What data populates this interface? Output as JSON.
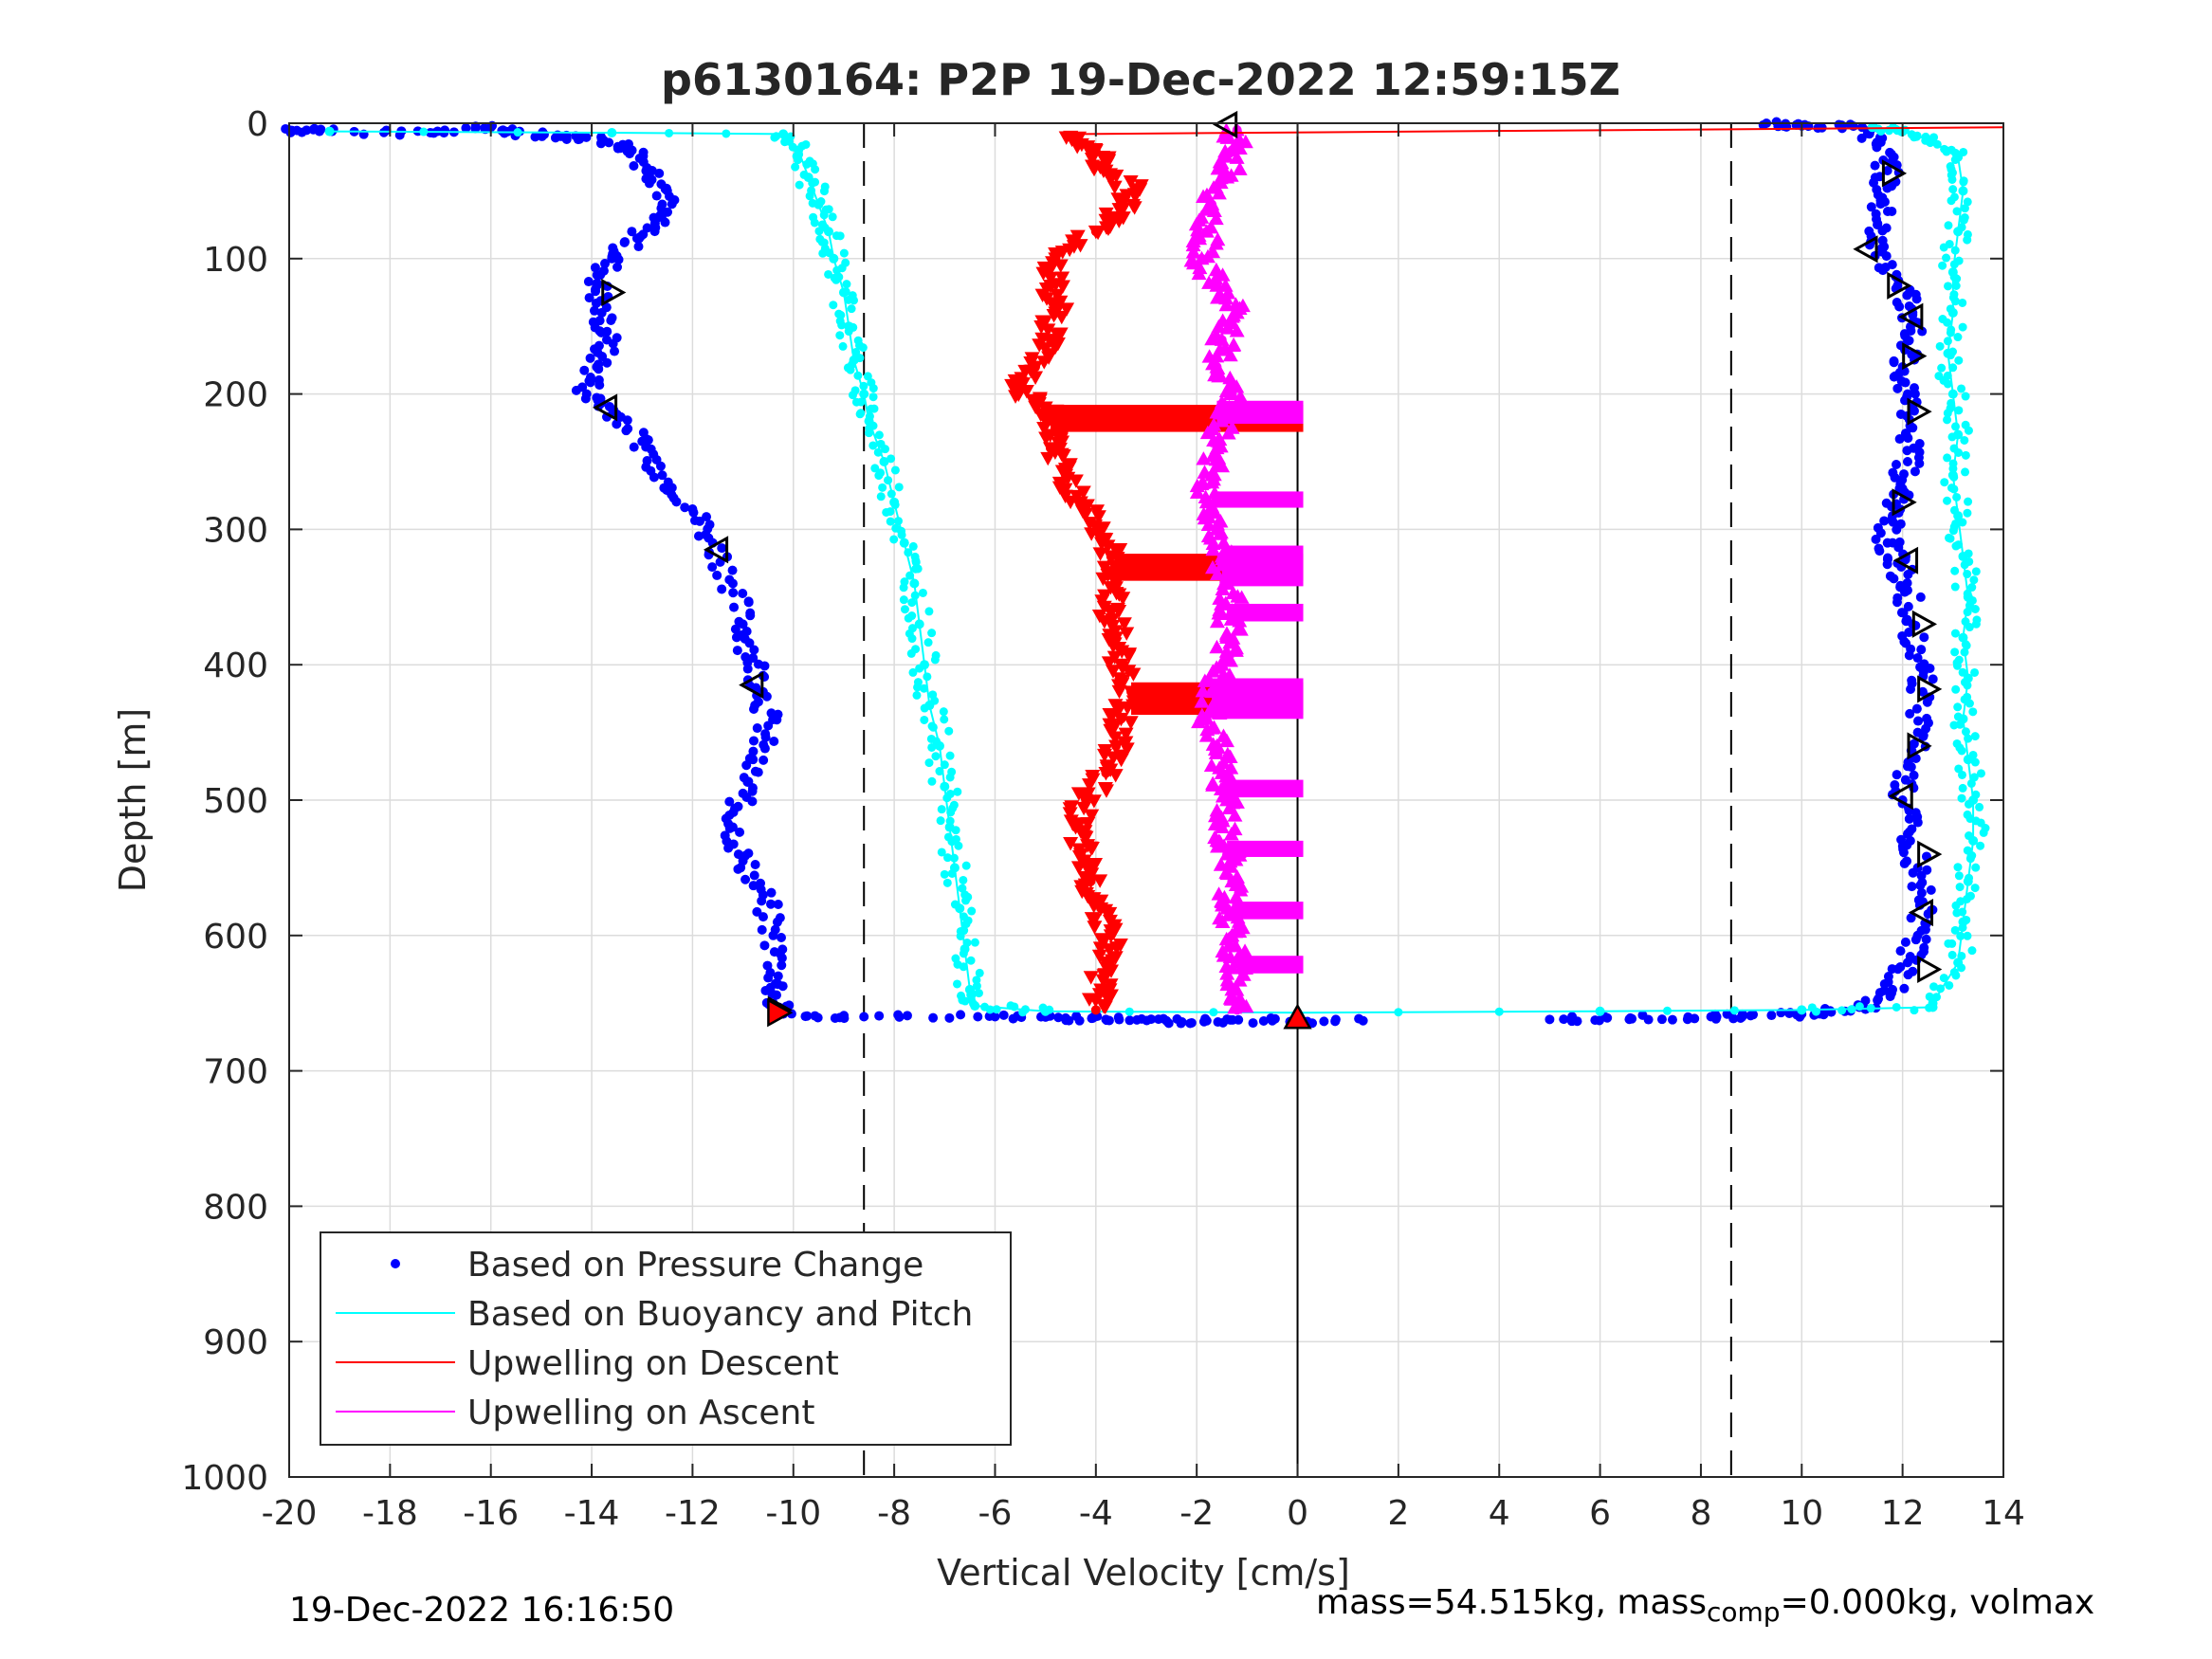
{
  "chart_data": {
    "type": "scatter",
    "title": "p6130164: P2P 19-Dec-2022 12:59:15Z",
    "xlabel": "Vertical Velocity [cm/s]",
    "ylabel": "Depth [m]",
    "xlim": [
      -20,
      14
    ],
    "ylim": [
      0,
      1000
    ],
    "y_reversed": true,
    "grid": true,
    "x_ticks": [
      -20,
      -18,
      -16,
      -14,
      -12,
      -10,
      -8,
      -6,
      -4,
      -2,
      0,
      2,
      4,
      6,
      8,
      10,
      12,
      14
    ],
    "y_ticks": [
      0,
      100,
      200,
      300,
      400,
      500,
      600,
      700,
      800,
      900,
      1000
    ],
    "reference_lines": {
      "dashed_x": [
        -8.6,
        8.6
      ],
      "solid_x": [
        0
      ]
    },
    "legend_position": "bottom-left",
    "legend": [
      {
        "label": "Based on Pressure Change",
        "color": "#0000ff",
        "style": "dot"
      },
      {
        "label": "Based on Buoyancy and Pitch",
        "color": "#00ffff",
        "style": "line"
      },
      {
        "label": "Upwelling on Descent",
        "color": "#ff0000",
        "style": "line"
      },
      {
        "label": "Upwelling on Ascent",
        "color": "#ff00ff",
        "style": "line"
      }
    ],
    "series": [
      {
        "name": "Based on Pressure Change",
        "role": "descent",
        "color": "#0000ff",
        "marker": "dot",
        "points": [
          [
            -20,
            5
          ],
          [
            -19.4,
            6
          ],
          [
            -17.2,
            7
          ],
          [
            -16,
            3
          ],
          [
            -15.5,
            8
          ],
          [
            -14.5,
            9
          ],
          [
            -13.8,
            12
          ],
          [
            -13.2,
            20
          ],
          [
            -12.8,
            35
          ],
          [
            -12.5,
            50
          ],
          [
            -12.7,
            70
          ],
          [
            -13.1,
            85
          ],
          [
            -13.6,
            100
          ],
          [
            -13.9,
            120
          ],
          [
            -13.8,
            140
          ],
          [
            -13.7,
            160
          ],
          [
            -13.9,
            180
          ],
          [
            -14.1,
            200
          ],
          [
            -13.5,
            215
          ],
          [
            -13.0,
            235
          ],
          [
            -12.6,
            260
          ],
          [
            -12.0,
            285
          ],
          [
            -11.6,
            310
          ],
          [
            -11.2,
            340
          ],
          [
            -11.0,
            370
          ],
          [
            -10.8,
            395
          ],
          [
            -10.6,
            420
          ],
          [
            -10.5,
            445
          ],
          [
            -10.8,
            470
          ],
          [
            -11.0,
            495
          ],
          [
            -11.2,
            520
          ],
          [
            -11.0,
            545
          ],
          [
            -10.6,
            570
          ],
          [
            -10.4,
            600
          ],
          [
            -10.3,
            630
          ],
          [
            -10.4,
            650
          ],
          [
            -10.2,
            658
          ],
          [
            -8.6,
            660
          ],
          [
            -6.0,
            660
          ],
          [
            -4.6,
            661
          ],
          [
            -3.8,
            662
          ],
          [
            -2.6,
            663
          ],
          [
            -1.8,
            663
          ],
          [
            -0.5,
            663
          ],
          [
            1.3,
            663
          ]
        ]
      },
      {
        "name": "Based on Pressure Change",
        "role": "ascent",
        "color": "#0000ff",
        "marker": "dot",
        "points": [
          [
            5.0,
            662
          ],
          [
            6.6,
            661
          ],
          [
            8.2,
            660
          ],
          [
            9.4,
            659
          ],
          [
            10.3,
            658
          ],
          [
            11.2,
            653
          ],
          [
            11.8,
            640
          ],
          [
            12.1,
            620
          ],
          [
            12.3,
            600
          ],
          [
            12.4,
            575
          ],
          [
            12.3,
            550
          ],
          [
            12.1,
            525
          ],
          [
            12.0,
            500
          ],
          [
            12.1,
            475
          ],
          [
            12.3,
            450
          ],
          [
            12.4,
            420
          ],
          [
            12.3,
            395
          ],
          [
            12.2,
            370
          ],
          [
            12.1,
            345
          ],
          [
            11.9,
            325
          ],
          [
            11.7,
            310
          ],
          [
            11.8,
            290
          ],
          [
            12.0,
            270
          ],
          [
            12.1,
            250
          ],
          [
            12.2,
            225
          ],
          [
            12.1,
            200
          ],
          [
            12.0,
            180
          ],
          [
            12.1,
            160
          ],
          [
            12.2,
            140
          ],
          [
            11.9,
            120
          ],
          [
            11.6,
            95
          ],
          [
            11.5,
            75
          ],
          [
            11.6,
            55
          ],
          [
            11.7,
            35
          ],
          [
            11.5,
            15
          ],
          [
            11.2,
            3
          ],
          [
            10.0,
            2
          ],
          [
            9.3,
            0
          ]
        ]
      },
      {
        "name": "Based on Buoyancy and Pitch",
        "role": "descent",
        "color": "#00ffff",
        "marker": "line",
        "points": [
          [
            -19.2,
            6
          ],
          [
            -13.6,
            7
          ],
          [
            -10.2,
            8
          ],
          [
            -9.9,
            20
          ],
          [
            -9.7,
            40
          ],
          [
            -9.5,
            60
          ],
          [
            -9.3,
            80
          ],
          [
            -9.2,
            100
          ],
          [
            -9.0,
            125
          ],
          [
            -8.9,
            150
          ],
          [
            -8.8,
            175
          ],
          [
            -8.6,
            200
          ],
          [
            -8.5,
            220
          ],
          [
            -8.2,
            250
          ],
          [
            -8.0,
            280
          ],
          [
            -7.8,
            310
          ],
          [
            -7.6,
            340
          ],
          [
            -7.5,
            370
          ],
          [
            -7.4,
            400
          ],
          [
            -7.3,
            430
          ],
          [
            -7.1,
            460
          ],
          [
            -7.0,
            490
          ],
          [
            -6.9,
            520
          ],
          [
            -6.8,
            550
          ],
          [
            -6.7,
            580
          ],
          [
            -6.6,
            610
          ],
          [
            -6.5,
            640
          ],
          [
            -6.4,
            652
          ],
          [
            -5.0,
            656
          ],
          [
            0,
            657
          ],
          [
            6.0,
            656
          ],
          [
            10.0,
            655
          ],
          [
            12.6,
            653
          ]
        ]
      },
      {
        "name": "Based on Buoyancy and Pitch",
        "role": "ascent",
        "color": "#00ffff",
        "marker": "line",
        "points": [
          [
            12.6,
            650
          ],
          [
            13.1,
            620
          ],
          [
            13.2,
            590
          ],
          [
            13.3,
            560
          ],
          [
            13.4,
            530
          ],
          [
            13.4,
            500
          ],
          [
            13.3,
            470
          ],
          [
            13.2,
            440
          ],
          [
            13.3,
            410
          ],
          [
            13.2,
            380
          ],
          [
            13.3,
            350
          ],
          [
            13.2,
            320
          ],
          [
            13.1,
            290
          ],
          [
            13.0,
            260
          ],
          [
            13.1,
            230
          ],
          [
            13.0,
            200
          ],
          [
            12.9,
            170
          ],
          [
            13.0,
            140
          ],
          [
            13.0,
            110
          ],
          [
            13.1,
            80
          ],
          [
            13.2,
            50
          ],
          [
            13.1,
            25
          ],
          [
            12.5,
            12
          ],
          [
            12.0,
            6
          ],
          [
            11.4,
            3
          ]
        ]
      },
      {
        "name": "Upwelling on Descent",
        "color": "#ff0000",
        "marker": "triangle-down",
        "points": [
          [
            -4.5,
            10
          ],
          [
            -4.0,
            20
          ],
          [
            -3.8,
            35
          ],
          [
            -3.2,
            50
          ],
          [
            -3.5,
            65
          ],
          [
            -4.0,
            80
          ],
          [
            -4.8,
            100
          ],
          [
            -4.9,
            120
          ],
          [
            -4.8,
            140
          ],
          [
            -4.9,
            160
          ],
          [
            -5.2,
            180
          ],
          [
            -5.6,
            195
          ],
          [
            -5.0,
            210
          ],
          [
            -4.8,
            225
          ],
          [
            -4.9,
            240
          ],
          [
            -4.6,
            260
          ],
          [
            -4.3,
            280
          ],
          [
            -3.9,
            300
          ],
          [
            -3.7,
            320
          ],
          [
            -3.6,
            340
          ],
          [
            -3.7,
            360
          ],
          [
            -3.6,
            380
          ],
          [
            -3.5,
            400
          ],
          [
            -3.3,
            420
          ],
          [
            -3.5,
            440
          ],
          [
            -3.6,
            460
          ],
          [
            -3.8,
            480
          ],
          [
            -4.2,
            500
          ],
          [
            -4.4,
            520
          ],
          [
            -4.3,
            540
          ],
          [
            -4.1,
            560
          ],
          [
            -3.9,
            580
          ],
          [
            -3.7,
            600
          ],
          [
            -3.8,
            620
          ],
          [
            -3.9,
            640
          ],
          [
            -4.0,
            655
          ]
        ]
      },
      {
        "name": "Upwelling on Ascent",
        "color": "#ff00ff",
        "marker": "triangle-up",
        "points": [
          [
            -1.2,
            5
          ],
          [
            -1.3,
            20
          ],
          [
            -1.4,
            40
          ],
          [
            -1.7,
            60
          ],
          [
            -1.8,
            80
          ],
          [
            -1.9,
            100
          ],
          [
            -1.6,
            120
          ],
          [
            -1.2,
            140
          ],
          [
            -1.5,
            160
          ],
          [
            -1.6,
            180
          ],
          [
            -1.3,
            200
          ],
          [
            -1.5,
            220
          ],
          [
            -1.6,
            240
          ],
          [
            -1.7,
            260
          ],
          [
            -1.8,
            280
          ],
          [
            -1.6,
            300
          ],
          [
            -1.5,
            320
          ],
          [
            -1.4,
            340
          ],
          [
            -1.3,
            360
          ],
          [
            -1.4,
            380
          ],
          [
            -1.5,
            400
          ],
          [
            -1.7,
            420
          ],
          [
            -1.8,
            440
          ],
          [
            -1.6,
            460
          ],
          [
            -1.5,
            480
          ],
          [
            -1.4,
            500
          ],
          [
            -1.5,
            520
          ],
          [
            -1.4,
            540
          ],
          [
            -1.3,
            560
          ],
          [
            -1.4,
            580
          ],
          [
            -1.3,
            600
          ],
          [
            -1.2,
            620
          ],
          [
            -1.3,
            640
          ],
          [
            -1.2,
            655
          ]
        ]
      }
    ],
    "band_rows": [
      {
        "color": "#ff0000",
        "x_from": -4.9,
        "x_to": 0,
        "depth_from": 208,
        "depth_to": 228
      },
      {
        "color": "#ff0000",
        "x_from": -3.6,
        "x_to": 0,
        "depth_from": 318,
        "depth_to": 338
      },
      {
        "color": "#ff0000",
        "x_from": -3.3,
        "x_to": 0,
        "depth_from": 413,
        "depth_to": 437
      },
      {
        "color": "#ff00ff",
        "x_from": -1.6,
        "x_to": 0,
        "depth_from": 205,
        "depth_to": 222
      },
      {
        "color": "#ff00ff",
        "x_from": -1.7,
        "x_to": 0,
        "depth_from": 272,
        "depth_to": 284
      },
      {
        "color": "#ff00ff",
        "x_from": -1.5,
        "x_to": 0,
        "depth_from": 312,
        "depth_to": 342
      },
      {
        "color": "#ff00ff",
        "x_from": -1.4,
        "x_to": 0,
        "depth_from": 355,
        "depth_to": 368
      },
      {
        "color": "#ff00ff",
        "x_from": -1.7,
        "x_to": 0,
        "depth_from": 410,
        "depth_to": 440
      },
      {
        "color": "#ff00ff",
        "x_from": -1.5,
        "x_to": 0,
        "depth_from": 485,
        "depth_to": 498
      },
      {
        "color": "#ff00ff",
        "x_from": -1.4,
        "x_to": 0,
        "depth_from": 530,
        "depth_to": 542
      },
      {
        "color": "#ff00ff",
        "x_from": -1.3,
        "x_to": 0,
        "depth_from": 575,
        "depth_to": 588
      },
      {
        "color": "#ff00ff",
        "x_from": -1.2,
        "x_to": 0,
        "depth_from": 615,
        "depth_to": 628
      }
    ],
    "markers_black_triangles": [
      [
        -1.4,
        1,
        "left"
      ],
      [
        -13.6,
        125,
        "right"
      ],
      [
        -13.7,
        210,
        "left"
      ],
      [
        -11.5,
        315,
        "left"
      ],
      [
        -10.8,
        415,
        "left"
      ],
      [
        -10.3,
        655,
        "right"
      ],
      [
        11.8,
        37,
        "right"
      ],
      [
        11.3,
        93,
        "left"
      ],
      [
        11.9,
        120,
        "right"
      ],
      [
        12.2,
        143,
        "left"
      ],
      [
        12.2,
        172,
        "right"
      ],
      [
        12.3,
        213,
        "right"
      ],
      [
        12.0,
        280,
        "right"
      ],
      [
        12.1,
        323,
        "left"
      ],
      [
        12.4,
        370,
        "right"
      ],
      [
        12.5,
        418,
        "right"
      ],
      [
        12.3,
        460,
        "right"
      ],
      [
        12.0,
        497,
        "left"
      ],
      [
        12.5,
        540,
        "right"
      ],
      [
        12.4,
        583,
        "left"
      ],
      [
        12.5,
        625,
        "right"
      ]
    ],
    "markers_red_triangles": [
      [
        0,
        661,
        "up"
      ],
      [
        -10.3,
        657,
        "right"
      ]
    ],
    "descent_surface_line": {
      "color": "#ff0000",
      "points": [
        [
          -4.5,
          8
        ],
        [
          14,
          3
        ]
      ]
    }
  },
  "footer": {
    "timestamp": "19-Dec-2022 16:16:50",
    "mass_text_before": "mass=54.515kg, mass",
    "mass_subscript": "comp",
    "mass_text_after": "=0.000kg, volmax"
  }
}
